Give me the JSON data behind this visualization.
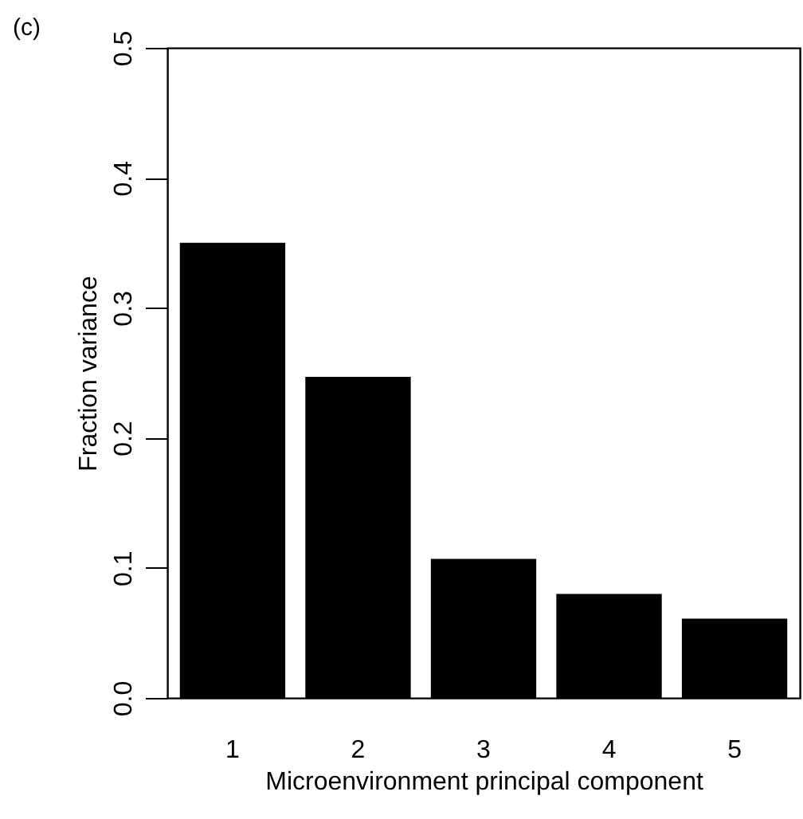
{
  "chart_data": {
    "type": "bar",
    "categories": [
      "1",
      "2",
      "3",
      "4",
      "5"
    ],
    "values": [
      0.35,
      0.247,
      0.107,
      0.08,
      0.061
    ],
    "color": "#000000",
    "xlabel": "Microenvironment principal component",
    "ylabel": "Fraction variance",
    "ylim": [
      0,
      0.5
    ],
    "yticks": [
      {
        "value": 0,
        "label": "0.0"
      },
      0.1,
      0.2,
      0.3,
      0.4,
      0.5
    ],
    "grid": false,
    "annotations": [
      "(c)"
    ]
  }
}
